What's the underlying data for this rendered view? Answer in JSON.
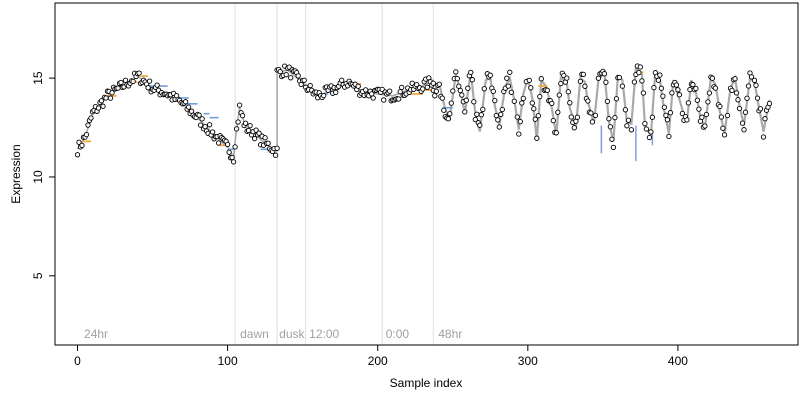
{
  "chart_data": {
    "type": "scatter",
    "xlabel": "Sample index",
    "ylabel": "Expression",
    "xlim": [
      -15,
      480
    ],
    "ylim": [
      1.5,
      18.8
    ],
    "xticks": [
      0,
      100,
      200,
      300,
      400
    ],
    "yticks": [
      5,
      10,
      15
    ],
    "colors": {
      "trend_line": "#a9a9a9",
      "segment_blue": "#6f9fd8",
      "segment_orange": "#f0a030",
      "point_edge": "#000000",
      "point_fill": "#ffffff",
      "vline": "#e0e0e0",
      "region_text": "#a0a0a0"
    },
    "region_lines": [
      105,
      133,
      152,
      203,
      237
    ],
    "region_labels": [
      {
        "x": 3,
        "text": "24hr"
      },
      {
        "x": 107,
        "text": "dawn"
      },
      {
        "x": 133,
        "text": "dusk"
      },
      {
        "x": 153,
        "text": "12:00"
      },
      {
        "x": 204,
        "text": "0:00"
      },
      {
        "x": 239,
        "text": "48hr"
      }
    ],
    "knots1": [
      [
        0,
        11.4
      ],
      [
        5,
        12
      ],
      [
        10,
        13.2
      ],
      [
        20,
        14.1
      ],
      [
        30,
        14.6
      ],
      [
        40,
        15.1
      ],
      [
        50,
        14.5
      ],
      [
        60,
        14.2
      ],
      [
        70,
        13.7
      ],
      [
        80,
        13
      ],
      [
        90,
        12.2
      ],
      [
        100,
        11.5
      ],
      [
        104,
        11
      ]
    ],
    "knots2": [
      [
        105,
        11.8
      ],
      [
        108,
        13.5
      ],
      [
        112,
        12.5
      ],
      [
        117,
        12.3
      ],
      [
        122,
        11.9
      ],
      [
        127,
        11.6
      ],
      [
        133,
        11.3
      ]
    ],
    "knots3": [
      [
        133,
        15.3
      ],
      [
        140,
        15.4
      ],
      [
        148,
        14.9
      ],
      [
        152,
        14.6
      ],
      [
        160,
        14.1
      ],
      [
        170,
        14.4
      ],
      [
        180,
        14.8
      ],
      [
        190,
        14.3
      ],
      [
        200,
        14.2
      ],
      [
        210,
        14.1
      ],
      [
        220,
        14.4
      ],
      [
        230,
        14.6
      ],
      [
        237,
        14.9
      ]
    ],
    "knots_osc": [
      [
        237,
        14.3
      ],
      [
        241,
        14.7
      ],
      [
        245,
        13.4
      ],
      [
        248,
        13
      ],
      [
        252,
        15.2
      ],
      [
        256,
        14.1
      ],
      [
        258,
        13.2
      ],
      [
        262,
        15.3
      ],
      [
        265,
        13.2
      ],
      [
        268,
        12.3
      ],
      [
        272,
        14.9
      ],
      [
        275,
        15
      ],
      [
        278,
        13.6
      ],
      [
        281,
        12.6
      ],
      [
        285,
        14.6
      ],
      [
        288,
        15
      ],
      [
        291,
        13.9
      ],
      [
        294,
        12.4
      ],
      [
        297,
        14.2
      ],
      [
        300,
        15
      ],
      [
        303,
        14
      ],
      [
        306,
        11.9
      ],
      [
        309,
        14.9
      ],
      [
        312,
        14.6
      ],
      [
        316,
        13.5
      ],
      [
        319,
        12.1
      ],
      [
        322,
        15
      ],
      [
        326,
        14.8
      ],
      [
        328,
        13.5
      ],
      [
        332,
        12.5
      ],
      [
        335,
        15
      ],
      [
        338,
        14.8
      ],
      [
        340,
        13.8
      ],
      [
        344,
        12.7
      ],
      [
        347,
        14.9
      ],
      [
        351,
        15.3
      ],
      [
        354,
        12.8
      ],
      [
        357,
        11.8
      ],
      [
        360,
        15.1
      ],
      [
        363,
        14.9
      ],
      [
        366,
        12.8
      ],
      [
        369,
        12.7
      ],
      [
        372,
        15.5
      ],
      [
        376,
        15.2
      ],
      [
        378,
        12.6
      ],
      [
        382,
        12.1
      ],
      [
        385,
        15.4
      ],
      [
        388,
        14.9
      ],
      [
        391,
        13.3
      ],
      [
        394,
        12.2
      ],
      [
        397,
        14.9
      ],
      [
        400,
        14.2
      ],
      [
        403,
        13.4
      ],
      [
        406,
        12.8
      ],
      [
        409,
        14.9
      ],
      [
        412,
        14.3
      ],
      [
        415,
        13
      ],
      [
        418,
        12.5
      ],
      [
        422,
        15
      ],
      [
        425,
        14.7
      ],
      [
        428,
        13.3
      ],
      [
        431,
        12.2
      ],
      [
        435,
        14.5
      ],
      [
        438,
        15
      ],
      [
        441,
        13.6
      ],
      [
        444,
        12.6
      ],
      [
        448,
        15
      ],
      [
        451,
        14.8
      ],
      [
        454,
        13.5
      ],
      [
        457,
        12.3
      ],
      [
        461,
        13.9
      ]
    ],
    "segments": [
      {
        "x0": 3,
        "x1": 9,
        "y": 11.8,
        "color": "orange"
      },
      {
        "x0": 18,
        "x1": 26,
        "y": 14.1,
        "color": "orange"
      },
      {
        "x0": 34,
        "x1": 40,
        "y": 14.8,
        "color": "orange"
      },
      {
        "x0": 42,
        "x1": 47,
        "y": 15.1,
        "color": "orange"
      },
      {
        "x0": 47,
        "x1": 60,
        "y": 14.6,
        "color": "blue"
      },
      {
        "x0": 66,
        "x1": 74,
        "y": 14,
        "color": "blue"
      },
      {
        "x0": 70,
        "x1": 80,
        "y": 13.7,
        "color": "blue"
      },
      {
        "x0": 84,
        "x1": 88,
        "y": 13.2,
        "color": "blue"
      },
      {
        "x0": 88,
        "x1": 94,
        "y": 13,
        "color": "blue"
      },
      {
        "x0": 94,
        "x1": 100,
        "y": 11.6,
        "color": "orange"
      },
      {
        "x0": 100,
        "x1": 104,
        "y": 11.4,
        "color": "blue"
      },
      {
        "x0": 116,
        "x1": 122,
        "y": 12.2,
        "color": "orange"
      },
      {
        "x0": 122,
        "x1": 131,
        "y": 11.4,
        "color": "blue"
      },
      {
        "x0": 160,
        "x1": 167,
        "y": 14.2,
        "color": "blue"
      },
      {
        "x0": 180,
        "x1": 189,
        "y": 14.7,
        "color": "orange"
      },
      {
        "x0": 188,
        "x1": 200,
        "y": 14.4,
        "color": "blue"
      },
      {
        "x0": 200,
        "x1": 204,
        "y": 14.4,
        "color": "blue"
      },
      {
        "x0": 217,
        "x1": 230,
        "y": 14.2,
        "color": "orange"
      },
      {
        "x0": 230,
        "x1": 237,
        "y": 14.4,
        "color": "orange"
      },
      {
        "x0": 244,
        "x1": 250,
        "y": 13.5,
        "color": "blue"
      },
      {
        "x0": 307,
        "x1": 313,
        "y": 14.6,
        "color": "orange"
      },
      {
        "x0": 372,
        "x1": 377,
        "y": 15.3,
        "color": "orange"
      }
    ],
    "drops": [
      {
        "x": 349,
        "y0": 12.6,
        "y1": 11.2
      },
      {
        "x": 372,
        "y0": 12.6,
        "y1": 10.8
      },
      {
        "x": 383,
        "y0": 12.3,
        "y1": 11.6
      }
    ]
  }
}
